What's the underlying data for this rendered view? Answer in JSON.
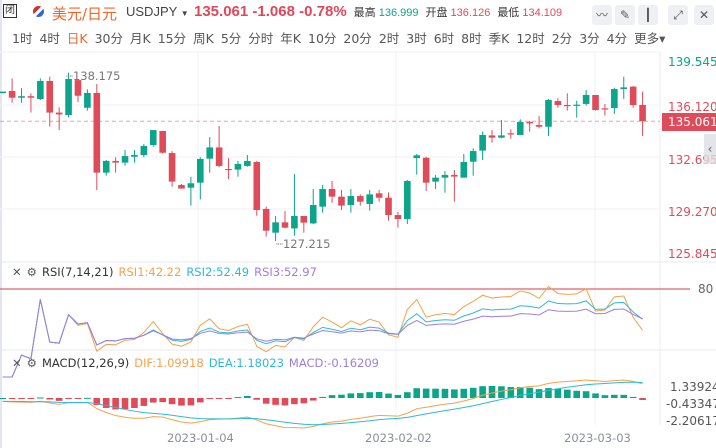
{
  "header": {
    "lock_icon": "闭",
    "title": "美元/日元",
    "symbol": "USDJPY",
    "price": "135.061",
    "change": "-1.068",
    "change_pct": "-0.78%",
    "high_label": "最高",
    "high": "136.999",
    "open_label": "开盘",
    "open": "136.126",
    "low_label": "最低",
    "low": "134.109"
  },
  "periods": [
    "1时",
    "4时",
    "日K",
    "30分",
    "月K",
    "15分",
    "周K",
    "5分",
    "分时",
    "年K",
    "10分",
    "20分",
    "2时",
    "3时",
    "6时",
    "8时",
    "季K",
    "12时",
    "2分",
    "3分",
    "4分",
    "更多▾"
  ],
  "active_period": "日K",
  "price_axis": [
    "139.545",
    "136.120",
    "132.695",
    "129.270",
    "125.845"
  ],
  "current_price_tag": "135.061",
  "high_marker": "138.175",
  "low_marker": "127.215",
  "rsi": {
    "title": "RSI(7,14,21)",
    "rsi1": "RSI1:42.22",
    "rsi2": "RSI2:52.49",
    "rsi3": "RSI3:52.97",
    "level": "80"
  },
  "macd": {
    "title": "MACD(12,26,9)",
    "dif": "DIF:1.09918",
    "dea": "DEA:1.18023",
    "macd": "MACD:-0.16209",
    "axis": [
      "1.33924",
      "-0.43347",
      "-2.20617"
    ]
  },
  "dates": [
    "2023-01-04",
    "2023-02-02",
    "2023-03-03"
  ],
  "colors": {
    "up": "#0aa58a",
    "down": "#e04b5a",
    "rsi1": "#f7a14a",
    "rsi2": "#2bbbd8",
    "rsi3": "#9b7fe0"
  },
  "candles": [
    [
      136.9,
      137.0,
      136.9,
      137.0
    ],
    [
      137.04,
      137.87,
      136.27,
      136.6
    ],
    [
      136.6,
      137.22,
      136.27,
      136.7
    ],
    [
      136.7,
      136.89,
      135.62,
      136.6
    ],
    [
      136.51,
      137.87,
      136.45,
      137.7
    ],
    [
      137.7,
      137.98,
      134.7,
      135.62
    ],
    [
      135.62,
      135.97,
      134.47,
      135.5
    ],
    [
      135.46,
      138.25,
      135.31,
      137.83
    ],
    [
      137.76,
      137.76,
      136.32,
      136.73
    ],
    [
      135.94,
      137.15,
      135.75,
      136.91
    ],
    [
      136.91,
      137.5,
      130.53,
      131.67
    ],
    [
      131.67,
      132.5,
      131.47,
      132.44
    ],
    [
      132.44,
      132.68,
      131.67,
      132.33
    ],
    [
      132.33,
      133.16,
      132.13,
      132.76
    ],
    [
      132.72,
      133.16,
      132.33,
      132.83
    ],
    [
      132.83,
      133.55,
      132.68,
      133.42
    ],
    [
      133.49,
      134.47,
      133.38,
      134.47
    ],
    [
      134.41,
      134.41,
      132.92,
      132.98
    ],
    [
      132.96,
      133.09,
      130.75,
      131.08
    ],
    [
      130.86,
      130.92,
      130.62,
      130.62
    ],
    [
      130.68,
      131.4,
      129.5,
      130.97
    ],
    [
      131.01,
      132.68,
      129.91,
      132.57
    ],
    [
      132.59,
      134.01,
      131.67,
      133.33
    ],
    [
      133.33,
      134.74,
      132.02,
      132.11
    ],
    [
      131.91,
      132.63,
      131.25,
      131.87
    ],
    [
      131.87,
      132.44,
      131.4,
      132.24
    ],
    [
      132.11,
      132.83,
      132.06,
      132.44
    ],
    [
      132.37,
      132.44,
      128.84,
      129.21
    ],
    [
      129.28,
      129.43,
      127.46,
      127.85
    ],
    [
      127.72,
      128.82,
      127.17,
      128.4
    ],
    [
      128.4,
      129.15,
      128.0,
      128.05
    ],
    [
      128.0,
      131.58,
      127.52,
      128.82
    ],
    [
      128.82,
      128.82,
      127.72,
      128.38
    ],
    [
      128.33,
      130.59,
      128.29,
      129.54
    ],
    [
      129.43,
      130.86,
      129.04,
      130.59
    ],
    [
      130.59,
      131.12,
      129.69,
      130.09
    ],
    [
      130.09,
      130.53,
      129.21,
      129.5
    ],
    [
      129.54,
      130.59,
      129.04,
      130.13
    ],
    [
      130.13,
      130.24,
      129.5,
      129.76
    ],
    [
      129.61,
      130.53,
      129.17,
      130.24
    ],
    [
      130.31,
      130.53,
      129.76,
      130.02
    ],
    [
      130.02,
      130.37,
      128.51,
      128.88
    ],
    [
      128.88,
      129.08,
      128.05,
      128.62
    ],
    [
      128.62,
      131.19,
      128.29,
      131.12
    ],
    [
      132.63,
      132.9,
      131.54,
      132.81
    ],
    [
      132.65,
      132.72,
      130.46,
      131.01
    ],
    [
      131.08,
      131.52,
      130.59,
      131.34
    ],
    [
      131.34,
      131.78,
      130.35,
      131.52
    ],
    [
      131.52,
      131.84,
      129.76,
      131.41
    ],
    [
      131.34,
      132.9,
      131.34,
      132.37
    ],
    [
      132.39,
      133.27,
      131.47,
      133.09
    ],
    [
      133.12,
      134.37,
      132.5,
      134.15
    ],
    [
      134.12,
      134.47,
      133.64,
      133.97
    ],
    [
      133.97,
      135.13,
      133.93,
      134.12
    ],
    [
      134.26,
      134.52,
      133.9,
      134.19
    ],
    [
      134.15,
      135.18,
      134.15,
      135.0
    ],
    [
      135.0,
      135.07,
      134.37,
      134.91
    ],
    [
      134.8,
      135.4,
      134.58,
      134.69
    ],
    [
      134.69,
      136.51,
      134.08,
      136.45
    ],
    [
      136.38,
      136.56,
      135.94,
      136.12
    ],
    [
      136.12,
      136.89,
      135.75,
      136.08
    ],
    [
      136.1,
      136.4,
      135.29,
      136.14
    ],
    [
      136.19,
      137.11,
      136.08,
      136.78
    ],
    [
      136.78,
      136.78,
      135.75,
      135.79
    ],
    [
      135.9,
      136.19,
      135.42,
      135.86
    ],
    [
      135.92,
      137.26,
      135.53,
      137.17
    ],
    [
      137.17,
      137.98,
      136.51,
      137.28
    ],
    [
      137.33,
      137.37,
      135.94,
      136.12
    ],
    [
      136.12,
      137.0,
      134.08,
      135.06
    ]
  ]
}
